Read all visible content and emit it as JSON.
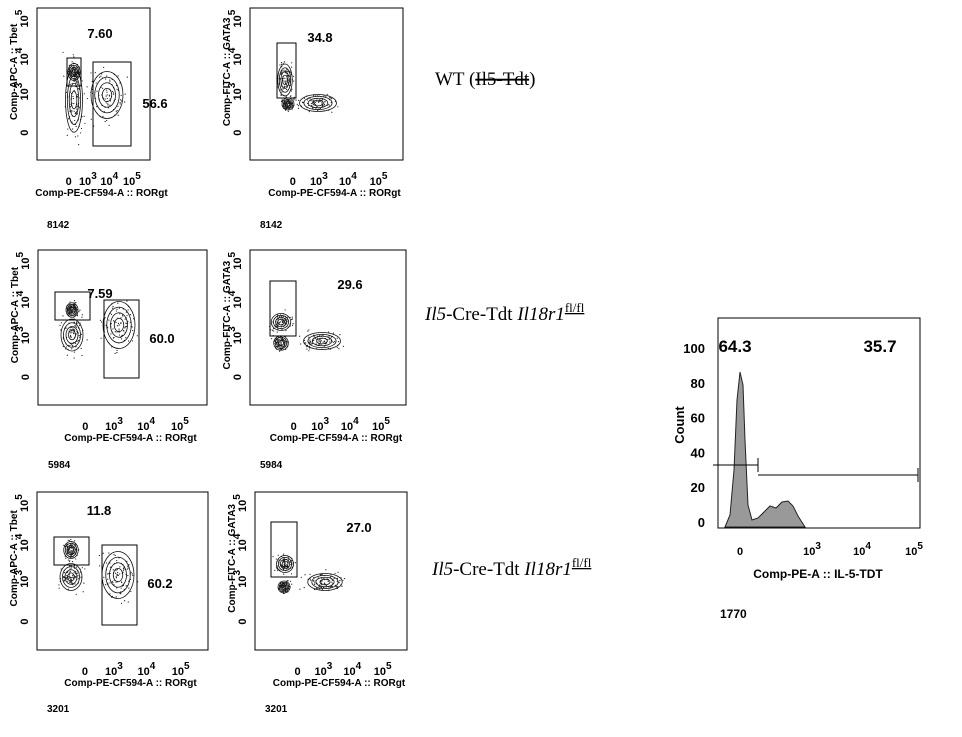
{
  "panels": [
    {
      "label": {
        "prefix": "WT (",
        "struck": "Il5-Tdt",
        "suffix": ")"
      },
      "plots": [
        {
          "y_label": "Comp-APC-A :: Tbet",
          "x_label": "Comp-PE-CF594-A :: RORgt",
          "gates": [
            "7.60",
            "56.6"
          ],
          "event_count": "8142",
          "x_ticks": [
            "0",
            {
              "base": "10",
              "exp": "3"
            },
            {
              "base": "10",
              "exp": "4"
            },
            {
              "base": "10",
              "exp": "5"
            }
          ],
          "y_ticks": [
            "0",
            {
              "base": "10",
              "exp": "3"
            },
            {
              "base": "10",
              "exp": "4"
            },
            {
              "base": "10",
              "exp": "5"
            }
          ]
        },
        {
          "y_label": "Comp-FITC-A :: GATA3",
          "x_label": "Comp-PE-CF594-A :: RORgt",
          "gates": [
            "34.8"
          ],
          "event_count": "8142",
          "x_ticks": [
            "0",
            {
              "base": "10",
              "exp": "3"
            },
            {
              "base": "10",
              "exp": "4"
            },
            {
              "base": "10",
              "exp": "5"
            }
          ],
          "y_ticks": [
            "0",
            {
              "base": "10",
              "exp": "3"
            },
            {
              "base": "10",
              "exp": "4"
            },
            {
              "base": "10",
              "exp": "5"
            }
          ]
        }
      ]
    },
    {
      "label": {
        "gene": "Il5",
        "mid": "-Cre-Tdt ",
        "gene2": "Il18r1",
        "sup": "fl/fl"
      },
      "plots": [
        {
          "y_label": "Comp-APC-A :: Tbet",
          "x_label": "Comp-PE-CF594-A :: RORgt",
          "gates": [
            "7.59",
            "60.0"
          ],
          "event_count": "5984",
          "x_ticks": [
            "0",
            {
              "base": "10",
              "exp": "3"
            },
            {
              "base": "10",
              "exp": "4"
            },
            {
              "base": "10",
              "exp": "5"
            }
          ],
          "y_ticks": [
            "0",
            {
              "base": "10",
              "exp": "3"
            },
            {
              "base": "10",
              "exp": "4"
            },
            {
              "base": "10",
              "exp": "5"
            }
          ]
        },
        {
          "y_label": "Comp-FITC-A :: GATA3",
          "x_label": "Comp-PE-CF594-A :: RORgt",
          "gates": [
            "29.6"
          ],
          "event_count": "5984",
          "x_ticks": [
            "0",
            {
              "base": "10",
              "exp": "3"
            },
            {
              "base": "10",
              "exp": "4"
            },
            {
              "base": "10",
              "exp": "5"
            }
          ],
          "y_ticks": [
            "0",
            {
              "base": "10",
              "exp": "3"
            },
            {
              "base": "10",
              "exp": "4"
            },
            {
              "base": "10",
              "exp": "5"
            }
          ]
        }
      ]
    },
    {
      "label": {
        "gene": "Il5",
        "mid": "-Cre-Tdt ",
        "gene2": "Il18r1",
        "sup": "fl/fl"
      },
      "plots": [
        {
          "y_label": "Comp-APC-A :: Tbet",
          "x_label": "Comp-PE-CF594-A :: RORgt",
          "gates": [
            "11.8",
            "60.2"
          ],
          "event_count": "3201",
          "x_ticks": [
            "0",
            {
              "base": "10",
              "exp": "3"
            },
            {
              "base": "10",
              "exp": "4"
            },
            {
              "base": "10",
              "exp": "5"
            }
          ],
          "y_ticks": [
            "0",
            {
              "base": "10",
              "exp": "3"
            },
            {
              "base": "10",
              "exp": "4"
            },
            {
              "base": "10",
              "exp": "5"
            }
          ]
        },
        {
          "y_label": "Comp-FITC-A :: GATA3",
          "x_label": "Comp-PE-CF594-A :: RORgt",
          "gates": [
            "27.0"
          ],
          "event_count": "3201",
          "x_ticks": [
            "0",
            {
              "base": "10",
              "exp": "3"
            },
            {
              "base": "10",
              "exp": "4"
            },
            {
              "base": "10",
              "exp": "5"
            }
          ],
          "y_ticks": [
            "0",
            {
              "base": "10",
              "exp": "3"
            },
            {
              "base": "10",
              "exp": "4"
            },
            {
              "base": "10",
              "exp": "5"
            }
          ]
        }
      ]
    }
  ],
  "histogram": {
    "y_label": "Count",
    "x_label": "Comp-PE-A :: IL-5-TDT",
    "gates": [
      "64.3",
      "35.7"
    ],
    "event_count": "1770",
    "y_ticks": [
      "0",
      "20",
      "40",
      "60",
      "80",
      "100"
    ],
    "x_ticks": [
      "0",
      {
        "base": "10",
        "exp": "3"
      },
      {
        "base": "10",
        "exp": "4"
      },
      {
        "base": "10",
        "exp": "5"
      }
    ]
  }
}
